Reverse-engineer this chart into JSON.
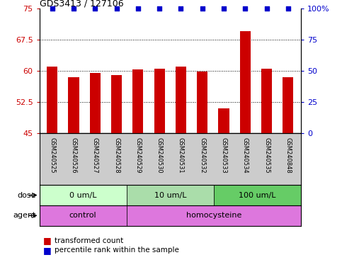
{
  "title": "GDS3413 / 127106",
  "samples": [
    "GSM240525",
    "GSM240526",
    "GSM240527",
    "GSM240528",
    "GSM240529",
    "GSM240530",
    "GSM240531",
    "GSM240532",
    "GSM240533",
    "GSM240534",
    "GSM240535",
    "GSM240848"
  ],
  "bar_values": [
    61.0,
    58.5,
    59.5,
    59.0,
    60.3,
    60.5,
    61.0,
    59.8,
    51.0,
    69.5,
    60.5,
    58.5
  ],
  "percentile_values": [
    100,
    100,
    100,
    100,
    100,
    100,
    100,
    100,
    100,
    100,
    100,
    100
  ],
  "bar_color": "#cc0000",
  "percentile_color": "#0000cc",
  "ylim_left": [
    45,
    75
  ],
  "ylim_right": [
    0,
    100
  ],
  "yticks_left": [
    45,
    52.5,
    60,
    67.5,
    75
  ],
  "yticks_right": [
    0,
    25,
    50,
    75,
    100
  ],
  "ytick_labels_right": [
    "0",
    "25",
    "50",
    "75",
    "100%"
  ],
  "grid_yticks": [
    52.5,
    60,
    67.5
  ],
  "dose_labels": [
    {
      "label": "0 um/L",
      "start": 0,
      "end": 4
    },
    {
      "label": "10 um/L",
      "start": 4,
      "end": 8
    },
    {
      "label": "100 um/L",
      "start": 8,
      "end": 12
    }
  ],
  "dose_colors": [
    "#ccffcc",
    "#aaddaa",
    "#66cc66"
  ],
  "agent_labels": [
    {
      "label": "control",
      "start": 0,
      "end": 4
    },
    {
      "label": "homocysteine",
      "start": 4,
      "end": 12
    }
  ],
  "agent_color": "#dd77dd",
  "bar_bg_color": "#cccccc",
  "legend_red_label": "transformed count",
  "legend_blue_label": "percentile rank within the sample",
  "xlabel_dose": "dose",
  "xlabel_agent": "agent"
}
